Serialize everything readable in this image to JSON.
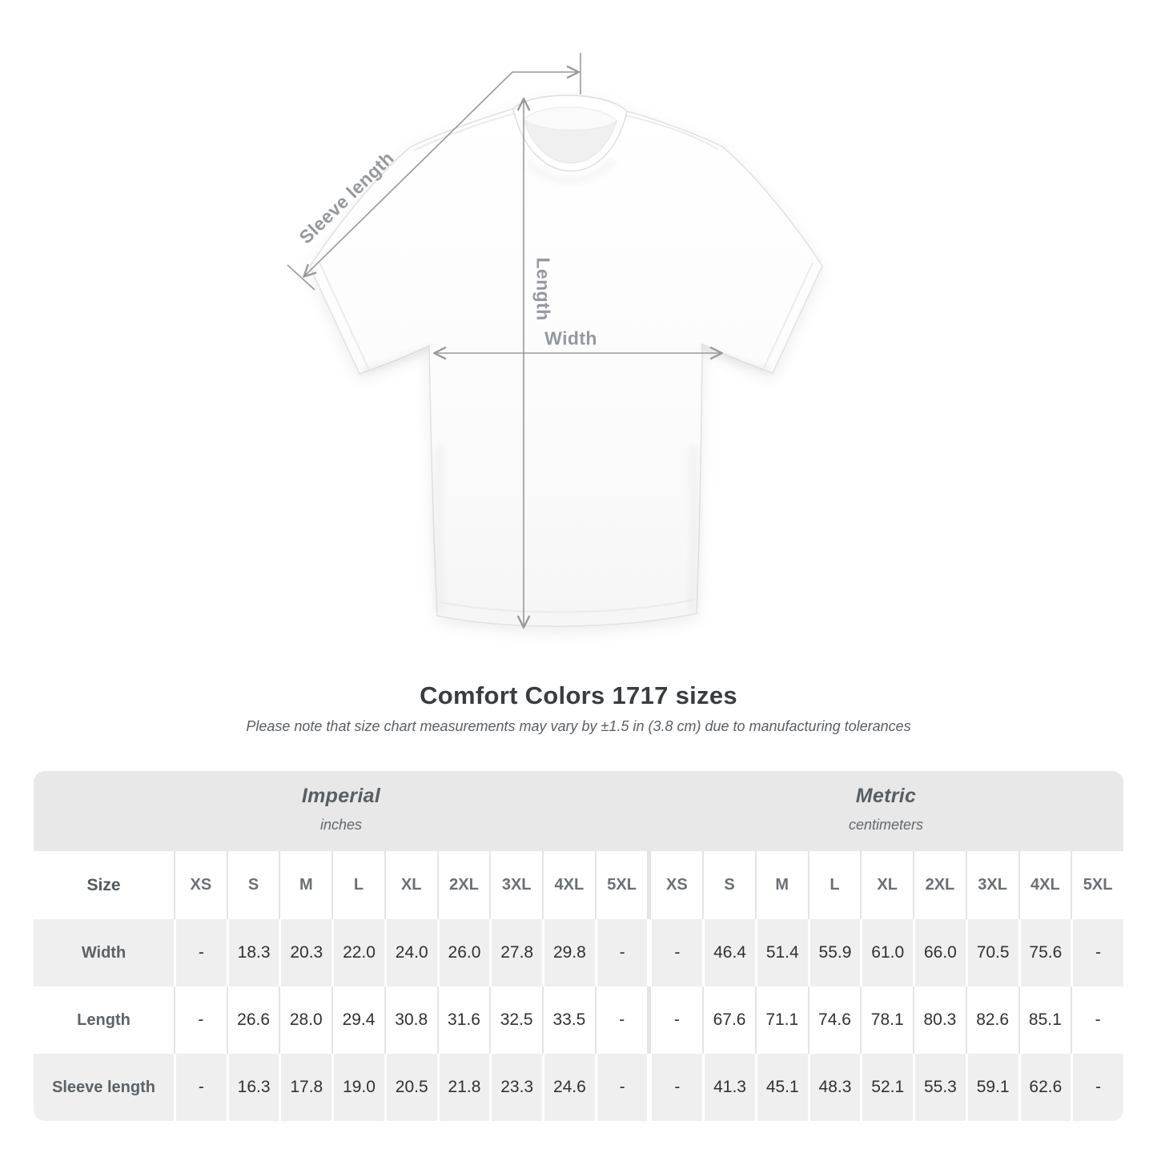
{
  "figure": {
    "sleeve_label": "Sleeve length",
    "length_label": "Length",
    "width_label": "Width",
    "annotation_color": "#97999c"
  },
  "title": "Comfort Colors 1717 sizes",
  "subtitle": "Please note that size chart measurements may vary by ±1.5 in (3.8 cm) due to manufacturing tolerances",
  "table": {
    "groups": [
      {
        "name": "Imperial",
        "unit": "inches"
      },
      {
        "name": "Metric",
        "unit": "centimeters"
      }
    ],
    "size_header": "Size",
    "columns": [
      "XS",
      "S",
      "M",
      "L",
      "XL",
      "2XL",
      "3XL",
      "4XL",
      "5XL"
    ],
    "rows": [
      {
        "label": "Width",
        "imperial": [
          "-",
          "18.3",
          "20.3",
          "22.0",
          "24.0",
          "26.0",
          "27.8",
          "29.8",
          "-"
        ],
        "metric": [
          "-",
          "46.4",
          "51.4",
          "55.9",
          "61.0",
          "66.0",
          "70.5",
          "75.6",
          "-"
        ]
      },
      {
        "label": "Length",
        "imperial": [
          "-",
          "26.6",
          "28.0",
          "29.4",
          "30.8",
          "31.6",
          "32.5",
          "33.5",
          "-"
        ],
        "metric": [
          "-",
          "67.6",
          "71.1",
          "74.6",
          "78.1",
          "80.3",
          "82.6",
          "85.1",
          "-"
        ]
      },
      {
        "label": "Sleeve length",
        "imperial": [
          "-",
          "16.3",
          "17.8",
          "19.0",
          "20.5",
          "21.8",
          "23.3",
          "24.6",
          "-"
        ],
        "metric": [
          "-",
          "41.3",
          "45.1",
          "48.3",
          "52.1",
          "55.3",
          "59.1",
          "62.6",
          "-"
        ]
      }
    ]
  },
  "chart_data": {
    "type": "table",
    "title": "Comfort Colors 1717 sizes",
    "categories": [
      "XS",
      "S",
      "M",
      "L",
      "XL",
      "2XL",
      "3XL",
      "4XL",
      "5XL"
    ],
    "series": [
      {
        "name": "Width (in)",
        "values": [
          null,
          18.3,
          20.3,
          22.0,
          24.0,
          26.0,
          27.8,
          29.8,
          null
        ]
      },
      {
        "name": "Length (in)",
        "values": [
          null,
          26.6,
          28.0,
          29.4,
          30.8,
          31.6,
          32.5,
          33.5,
          null
        ]
      },
      {
        "name": "Sleeve length (in)",
        "values": [
          null,
          16.3,
          17.8,
          19.0,
          20.5,
          21.8,
          23.3,
          24.6,
          null
        ]
      },
      {
        "name": "Width (cm)",
        "values": [
          null,
          46.4,
          51.4,
          55.9,
          61.0,
          66.0,
          70.5,
          75.6,
          null
        ]
      },
      {
        "name": "Length (cm)",
        "values": [
          null,
          67.6,
          71.1,
          74.6,
          78.1,
          80.3,
          82.6,
          85.1,
          null
        ]
      },
      {
        "name": "Sleeve length (cm)",
        "values": [
          null,
          41.3,
          45.1,
          48.3,
          52.1,
          55.3,
          59.1,
          62.6,
          null
        ]
      }
    ]
  }
}
